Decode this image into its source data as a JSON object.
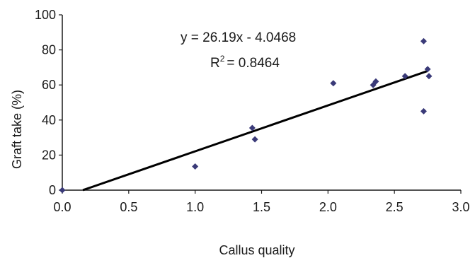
{
  "chart_data": {
    "type": "scatter",
    "xlabel": "Callus quality",
    "ylabel": "Graft take (%)",
    "xlim": [
      0,
      3
    ],
    "ylim": [
      0,
      100
    ],
    "x_ticks": [
      {
        "value": 0,
        "label": "0.0"
      },
      {
        "value": 0.5,
        "label": "0.5"
      },
      {
        "value": 1,
        "label": "1.0"
      },
      {
        "value": 1.5,
        "label": "1.5"
      },
      {
        "value": 2,
        "label": "2.0"
      },
      {
        "value": 2.5,
        "label": "2.5"
      },
      {
        "value": 3,
        "label": "3.0"
      }
    ],
    "y_ticks": [
      {
        "value": 0,
        "label": "0"
      },
      {
        "value": 20,
        "label": "20"
      },
      {
        "value": 40,
        "label": "40"
      },
      {
        "value": 60,
        "label": "60"
      },
      {
        "value": 80,
        "label": "80"
      },
      {
        "value": 100,
        "label": "100"
      }
    ],
    "points": [
      {
        "x": 0.0,
        "y": 0
      },
      {
        "x": 1.0,
        "y": 13.5
      },
      {
        "x": 1.43,
        "y": 35.5
      },
      {
        "x": 1.45,
        "y": 29
      },
      {
        "x": 2.04,
        "y": 61
      },
      {
        "x": 2.34,
        "y": 60
      },
      {
        "x": 2.36,
        "y": 62
      },
      {
        "x": 2.58,
        "y": 65
      },
      {
        "x": 2.72,
        "y": 85
      },
      {
        "x": 2.72,
        "y": 45
      },
      {
        "x": 2.75,
        "y": 69
      },
      {
        "x": 2.76,
        "y": 65
      }
    ],
    "trendline": {
      "slope": 26.19,
      "intercept": -4.0468,
      "x_range": [
        0.155,
        2.75
      ]
    },
    "annotations": {
      "equation": "y = 26.19x - 4.0468",
      "r2_base": "R",
      "r2_sup": "2",
      "r2_value": "= 0.8464"
    },
    "grid": false,
    "legend": "none",
    "colors": {
      "points": "#3a3a78",
      "trendline": "#000000",
      "axes": "#1a1a1a"
    }
  }
}
